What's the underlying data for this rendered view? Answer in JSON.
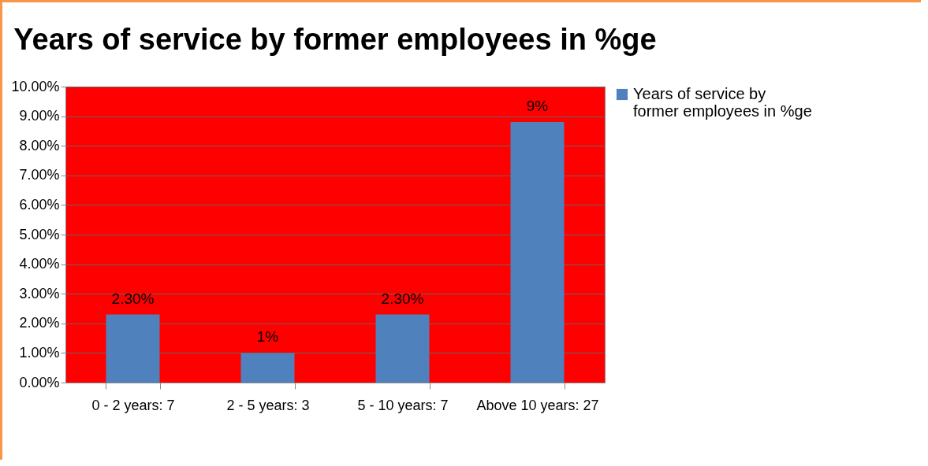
{
  "chart_data": {
    "type": "bar",
    "title": "Years of service by former employees in %ge",
    "categories": [
      "0 - 2 years: 7",
      "2 - 5 years: 3",
      "5 - 10 years: 7",
      "Above 10 years: 27"
    ],
    "series": [
      {
        "name": "Years of service by former employees in %ge",
        "color": "#4f81bd",
        "values": [
          2.3,
          1,
          2.3,
          8.8
        ],
        "value_labels": [
          "2.30%",
          "1%",
          "2.30%",
          "9%"
        ]
      }
    ],
    "ylim": [
      0,
      10
    ],
    "yticks": [
      {
        "value": 0,
        "label": "0.00%"
      },
      {
        "value": 1,
        "label": "1.00%"
      },
      {
        "value": 2,
        "label": "2.00%"
      },
      {
        "value": 3,
        "label": "3.00%"
      },
      {
        "value": 4,
        "label": "4.00%"
      },
      {
        "value": 5,
        "label": "5.00%"
      },
      {
        "value": 6,
        "label": "6.00%"
      },
      {
        "value": 7,
        "label": "7.00%"
      },
      {
        "value": 8,
        "label": "8.00%"
      },
      {
        "value": 9,
        "label": "9.00%"
      },
      {
        "value": 10,
        "label": "10.00%"
      }
    ],
    "grid": "y",
    "legend": "right"
  }
}
